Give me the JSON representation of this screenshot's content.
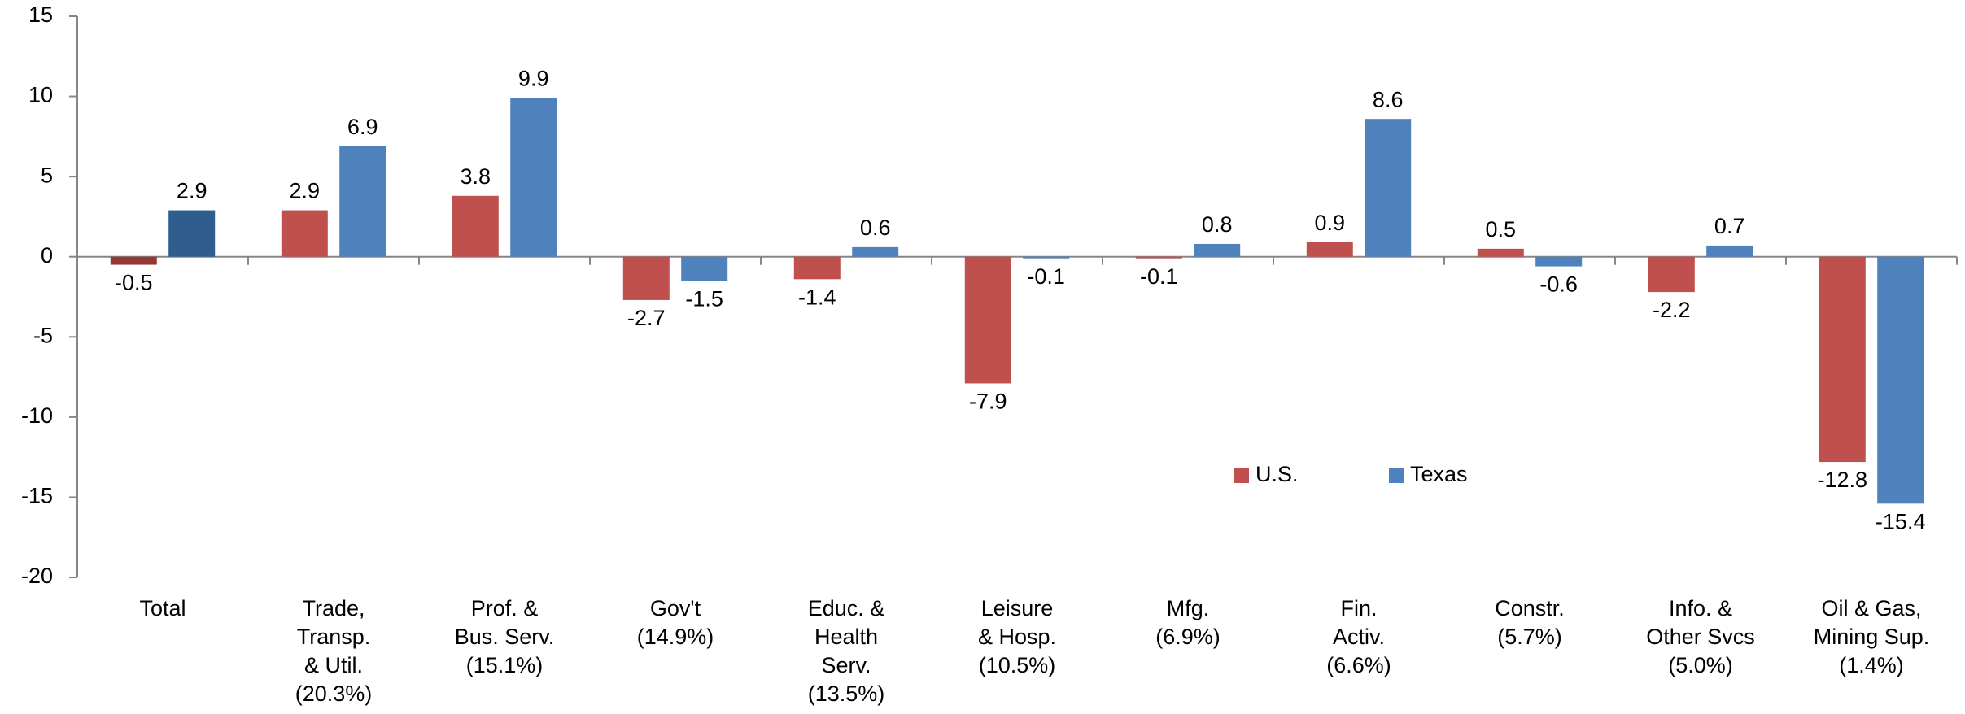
{
  "chart_data": {
    "type": "bar",
    "categories": [
      [
        "Total"
      ],
      [
        "Trade,",
        "Transp.",
        "& Util.",
        "(20.3%)"
      ],
      [
        "Prof. &",
        "Bus. Serv.",
        "(15.1%)"
      ],
      [
        "Gov't",
        "(14.9%)"
      ],
      [
        "Educ. &",
        "Health",
        "Serv.",
        "(13.5%)"
      ],
      [
        "Leisure",
        "& Hosp.",
        "(10.5%)"
      ],
      [
        "Mfg.",
        "(6.9%)"
      ],
      [
        "Fin.",
        "Activ.",
        "(6.6%)"
      ],
      [
        "Constr.",
        "(5.7%)"
      ],
      [
        "Info. &",
        "Other Svcs",
        "(5.0%)"
      ],
      [
        "Oil & Gas,",
        "Mining Sup.",
        "(1.4%)"
      ]
    ],
    "series": [
      {
        "name": "U.S.",
        "color": "#c0504d",
        "colors": [
          "#953735",
          "#c0504d",
          "#c0504d",
          "#c0504d",
          "#c0504d",
          "#c0504d",
          "#c0504d",
          "#c0504d",
          "#c0504d",
          "#c0504d",
          "#c0504d"
        ],
        "values": [
          -0.5,
          2.9,
          3.8,
          -2.7,
          -1.4,
          -7.9,
          -0.1,
          0.9,
          0.5,
          -2.2,
          -12.8
        ]
      },
      {
        "name": "Texas",
        "color": "#4f81bd",
        "colors": [
          "#2f5d8e",
          "#4f81bd",
          "#4f81bd",
          "#4f81bd",
          "#4f81bd",
          "#4f81bd",
          "#4f81bd",
          "#4f81bd",
          "#4f81bd",
          "#4f81bd",
          "#4f81bd"
        ],
        "values": [
          2.9,
          6.9,
          9.9,
          -1.5,
          0.6,
          -0.1,
          0.8,
          8.6,
          -0.6,
          0.7,
          -15.4
        ]
      }
    ],
    "ylim": [
      -20,
      15
    ],
    "yticks": [
      -20,
      -15,
      -10,
      -5,
      0,
      5,
      10,
      15
    ],
    "grid": false
  }
}
